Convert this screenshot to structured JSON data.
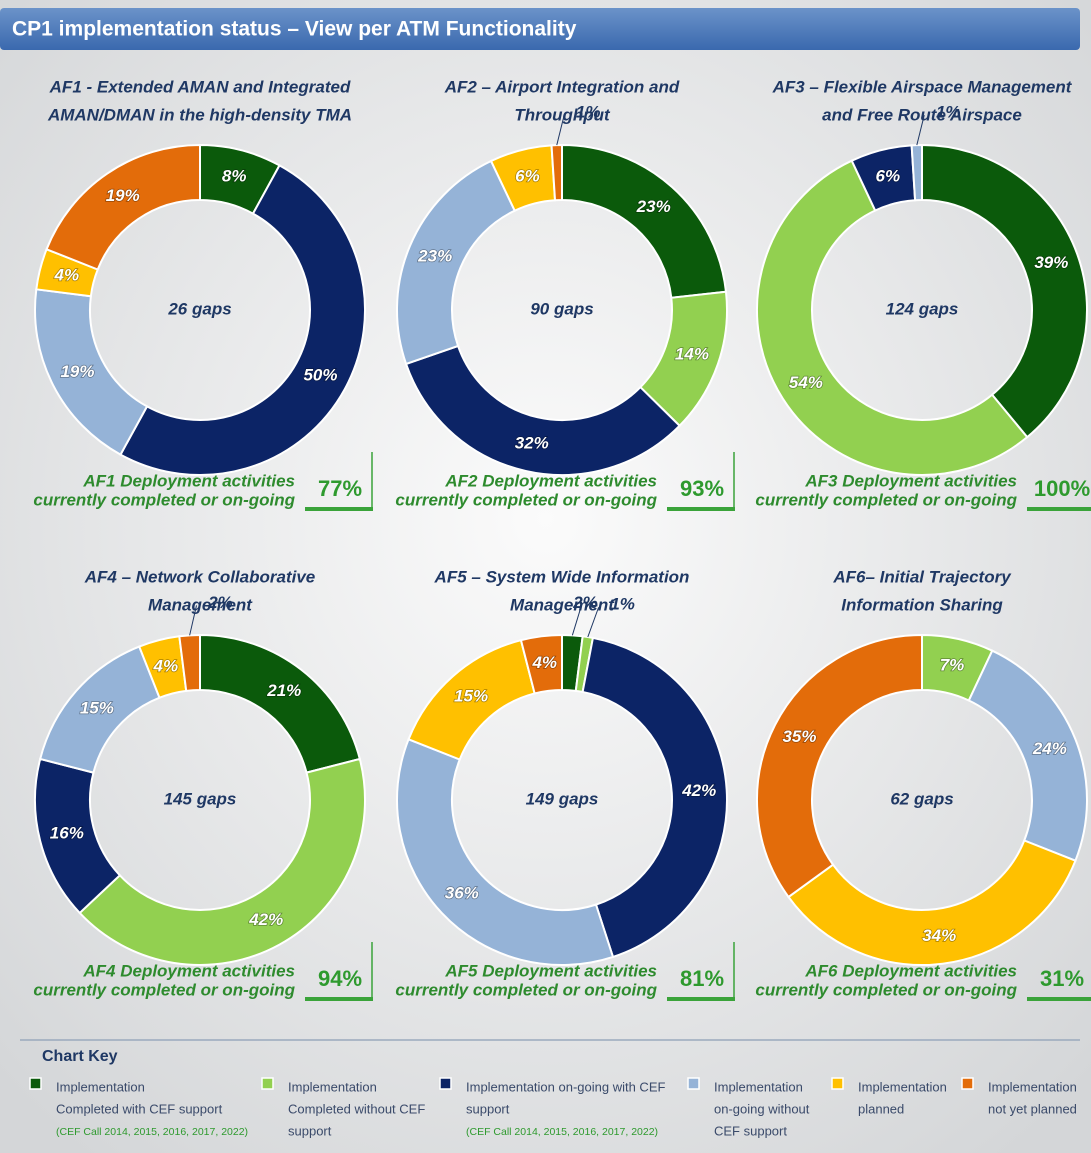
{
  "header": {
    "title": "CP1 implementation status – View per ATM Functionality"
  },
  "chart_data": [
    {
      "type": "pie",
      "title": [
        "AF1 - Extended AMAN and Integrated",
        "AMAN/DMAN in the high-density TMA"
      ],
      "center_label": "26 gaps",
      "values": [
        8,
        50,
        19,
        4,
        19
      ],
      "value_labels": [
        "8%",
        "50%",
        "19%",
        "4%",
        "19%"
      ],
      "colors": [
        "#0b5a0b",
        "#0c2466",
        "#95b3d7",
        "#ffc000",
        "#e36c0a"
      ],
      "deployment_text": [
        "AF1 Deployment activities",
        "currently completed or on-going"
      ],
      "deployment_value": "77%"
    },
    {
      "type": "pie",
      "title": [
        "AF2 –  Airport Integration and",
        "Throughput"
      ],
      "center_label": "90 gaps",
      "values": [
        23,
        14,
        32,
        23,
        6,
        1
      ],
      "value_labels": [
        "23%",
        "14%",
        "32%",
        "23%",
        "6%",
        "1%"
      ],
      "colors": [
        "#0b5a0b",
        "#92d050",
        "#0c2466",
        "#95b3d7",
        "#ffc000",
        "#e36c0a"
      ],
      "deployment_text": [
        "AF2 Deployment activities",
        "currently completed or on-going"
      ],
      "deployment_value": "93%"
    },
    {
      "type": "pie",
      "title": [
        "AF3 – Flexible Airspace Management",
        "and Free Route Airspace"
      ],
      "center_label": "124 gaps",
      "values": [
        39,
        54,
        6,
        1
      ],
      "value_labels": [
        "39%",
        "54%",
        "6%",
        "1%"
      ],
      "colors": [
        "#0b5a0b",
        "#92d050",
        "#0c2466",
        "#95b3d7"
      ],
      "deployment_text": [
        "AF3 Deployment activities",
        "currently completed or on-going"
      ],
      "deployment_value": "100%"
    },
    {
      "type": "pie",
      "title": [
        "AF4 – Network Collaborative",
        "Management"
      ],
      "center_label": "145 gaps",
      "values": [
        21,
        42,
        16,
        15,
        4,
        2
      ],
      "value_labels": [
        "21%",
        "42%",
        "16%",
        "15%",
        "4%",
        "2%"
      ],
      "colors": [
        "#0b5a0b",
        "#92d050",
        "#0c2466",
        "#95b3d7",
        "#ffc000",
        "#e36c0a"
      ],
      "deployment_text": [
        "AF4 Deployment activities",
        "currently completed or on-going"
      ],
      "deployment_value": "94%"
    },
    {
      "type": "pie",
      "title": [
        "AF5 – System Wide Information",
        "Management"
      ],
      "center_label": "149 gaps",
      "values": [
        2,
        1,
        42,
        36,
        15,
        4
      ],
      "value_labels": [
        "2%",
        "1%",
        "42%",
        "36%",
        "15%",
        "4%"
      ],
      "colors": [
        "#0b5a0b",
        "#92d050",
        "#0c2466",
        "#95b3d7",
        "#ffc000",
        "#e36c0a"
      ],
      "deployment_text": [
        "AF5 Deployment activities",
        "currently completed or on-going"
      ],
      "deployment_value": "81%"
    },
    {
      "type": "pie",
      "title": [
        "AF6– Initial Trajectory",
        "Information Sharing"
      ],
      "center_label": "62 gaps",
      "values": [
        7,
        24,
        34,
        35
      ],
      "value_labels": [
        "7%",
        "24%",
        "34%",
        "35%"
      ],
      "colors": [
        "#92d050",
        "#95b3d7",
        "#ffc000",
        "#e36c0a"
      ],
      "deployment_text": [
        "AF6 Deployment activities",
        "currently completed or on-going"
      ],
      "deployment_value": "31%"
    }
  ],
  "legend": {
    "title": "Chart Key",
    "items": [
      {
        "color": "#0b5a0b",
        "lines": [
          "Implementation",
          "Completed with CEF support"
        ],
        "note": "(CEF Call 2014, 2015, 2016, 2017, 2022)"
      },
      {
        "color": "#92d050",
        "lines": [
          "Implementation",
          "Completed without CEF",
          "support"
        ]
      },
      {
        "color": "#0c2466",
        "lines": [
          "Implementation on-going with CEF",
          "support"
        ],
        "note": "(CEF Call 2014, 2015, 2016, 2017, 2022)"
      },
      {
        "color": "#95b3d7",
        "lines": [
          "Implementation",
          "on-going without",
          "CEF support"
        ]
      },
      {
        "color": "#ffc000",
        "lines": [
          "Implementation",
          "planned"
        ]
      },
      {
        "color": "#e36c0a",
        "lines": [
          "Implementation",
          "not yet planned"
        ]
      }
    ]
  }
}
